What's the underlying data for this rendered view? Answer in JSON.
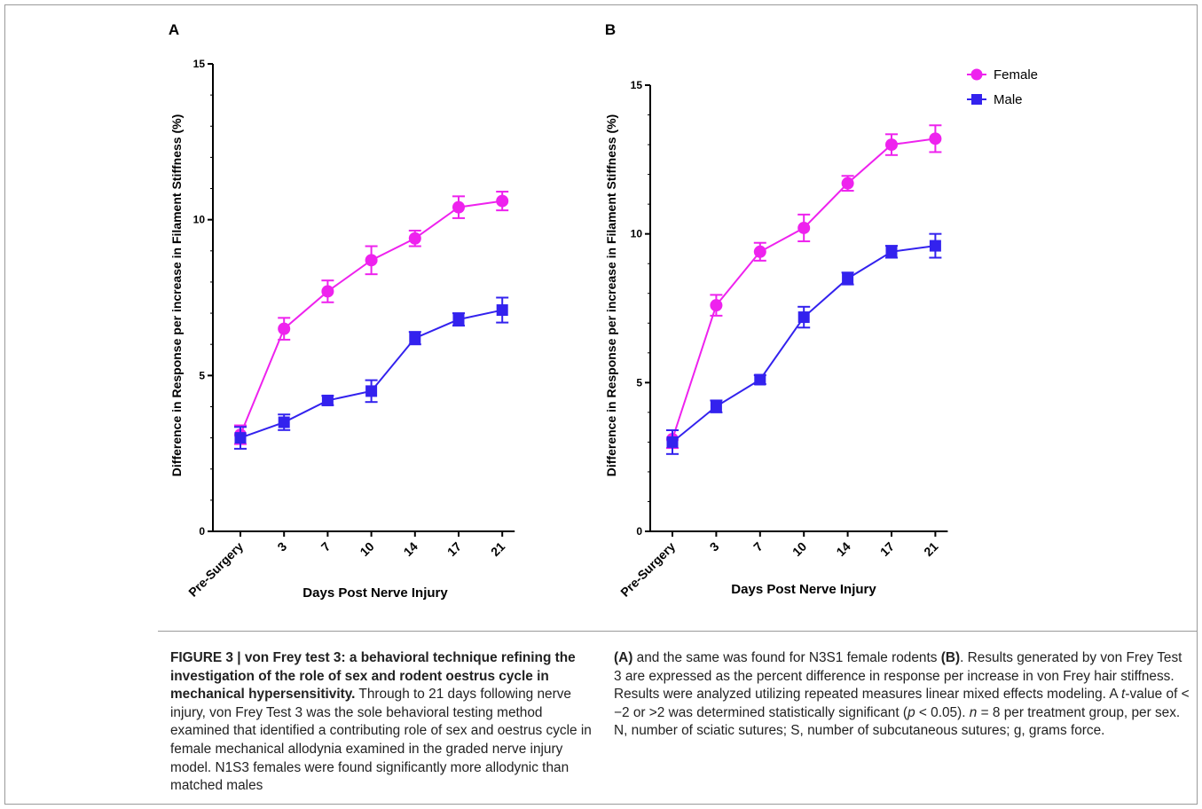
{
  "chart_data": [
    {
      "type": "line",
      "panel_label": "A",
      "ylabel": "Difference in Response per increase in Filament Stiffness (%)",
      "xlabel": "Days Post Nerve Injury",
      "categories": [
        "Pre-Surgery",
        "3",
        "7",
        "10",
        "14",
        "17",
        "21"
      ],
      "ylim": [
        0,
        15
      ],
      "yticks": [
        "0",
        "5",
        "10",
        "15"
      ],
      "series": [
        {
          "name": "",
          "color": "#ee22ee",
          "marker": "circle",
          "values": [
            3.1,
            6.5,
            7.7,
            8.7,
            9.4,
            10.4,
            10.6
          ],
          "errors": [
            0.3,
            0.35,
            0.35,
            0.45,
            0.25,
            0.35,
            0.3
          ]
        },
        {
          "name": "",
          "color": "#3322ee",
          "marker": "square",
          "values": [
            3.0,
            3.5,
            4.2,
            4.5,
            6.2,
            6.8,
            7.1
          ],
          "errors": [
            0.35,
            0.25,
            0.15,
            0.35,
            0.2,
            0.2,
            0.4
          ]
        }
      ]
    },
    {
      "type": "line",
      "panel_label": "B",
      "ylabel": "Difference in Response per increase in Filament Stiffness (%)",
      "xlabel": "Days Post Nerve Injury",
      "categories": [
        "Pre-Surgery",
        "3",
        "7",
        "10",
        "14",
        "17",
        "21"
      ],
      "ylim": [
        0,
        15
      ],
      "yticks": [
        "0",
        "5",
        "10",
        "15"
      ],
      "legend_position": "top-right",
      "series": [
        {
          "name": "Female",
          "color": "#ee22ee",
          "marker": "circle",
          "values": [
            3.1,
            7.6,
            9.4,
            10.2,
            11.7,
            13.0,
            13.2
          ],
          "errors": [
            0.3,
            0.35,
            0.3,
            0.45,
            0.25,
            0.35,
            0.45
          ]
        },
        {
          "name": "Male",
          "color": "#3322ee",
          "marker": "square",
          "values": [
            3.0,
            4.2,
            5.1,
            7.2,
            8.5,
            9.4,
            9.6
          ],
          "errors": [
            0.4,
            0.2,
            0.15,
            0.35,
            0.2,
            0.2,
            0.4
          ]
        }
      ]
    }
  ],
  "caption": {
    "title": "FIGURE 3 | von Frey test 3: a behavioral technique refining the investigation of the role of sex and rodent oestrus cycle in mechanical hypersensitivity.",
    "col1_text": " Through to 21 days following nerve injury, von Frey Test 3 was the sole behavioral testing method examined that identified a contributing role of sex and oestrus cycle in female mechanical allodynia examined in the graded nerve injury model. N1S3 females were found significantly more allodynic than matched males",
    "col2_a": "(A)",
    "col2_b_pre": " and the same was found for N3S1 female rodents ",
    "col2_b": "(B)",
    "col2_rest1": ". Results generated by von Frey Test 3 are expressed as the percent difference in response per increase in von Frey hair stiffness. Results were analyzed utilizing repeated measures linear mixed effects modeling. A ",
    "col2_t": "t",
    "col2_rest2": "-value of < −2 or >2 was determined statistically significant (",
    "col2_p": "p",
    "col2_rest3": " < 0.05). ",
    "col2_n": "n",
    "col2_rest4": " = 8 per treatment group, per sex. N, number of sciatic sutures; S, number of subcutaneous sutures; g, grams force."
  }
}
